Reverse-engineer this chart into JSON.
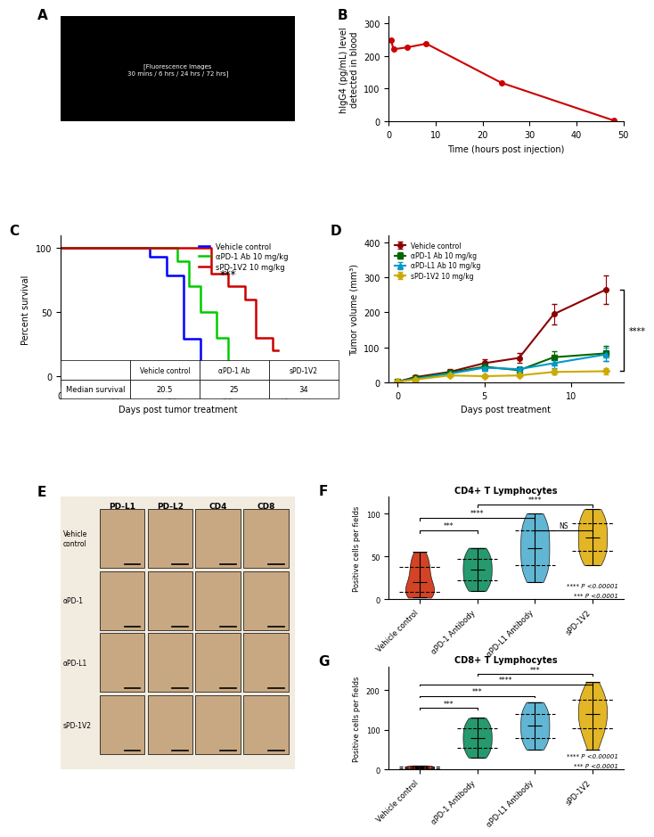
{
  "panel_B": {
    "x": [
      0.5,
      1,
      4,
      8,
      24,
      48
    ],
    "y": [
      247,
      220,
      226,
      237,
      118,
      3
    ],
    "color": "#CC0000",
    "xlabel": "Time (hours post injection)",
    "ylabel": "hIgG4 (pg/mL) level\ndetected in blood",
    "ylim": [
      0,
      320
    ],
    "yticks": [
      0,
      100,
      200,
      300
    ],
    "xlim": [
      0,
      50
    ],
    "xticks": [
      0,
      10,
      20,
      30,
      40,
      50
    ]
  },
  "panel_C": {
    "vehicle": {
      "times": [
        0,
        14,
        16,
        19,
        22,
        25,
        27,
        28
      ],
      "survival": [
        100,
        100,
        93,
        79,
        29,
        7,
        0,
        0
      ],
      "color": "#0000FF"
    },
    "apd1": {
      "times": [
        0,
        18,
        21,
        23,
        25,
        28,
        30,
        31
      ],
      "survival": [
        100,
        100,
        90,
        70,
        50,
        30,
        10,
        0
      ],
      "color": "#00CC00"
    },
    "spd1v2": {
      "times": [
        0,
        22,
        27,
        30,
        33,
        35,
        38,
        39
      ],
      "survival": [
        100,
        100,
        80,
        70,
        60,
        30,
        20,
        20
      ],
      "color": "#CC0000"
    },
    "xlabel": "Days post tumor treatment",
    "ylabel": "Percent survival",
    "xlim": [
      0,
      42
    ],
    "ylim": [
      -5,
      110
    ],
    "xticks": [
      0,
      10,
      20,
      30,
      40
    ],
    "yticks": [
      0,
      50,
      100
    ],
    "legend_labels": [
      "Vehicle control",
      "αPD-1 Ab 10 mg/kg",
      "sPD-1V2 10 mg/kg"
    ],
    "table": {
      "rows": [
        "Median survival"
      ],
      "cols": [
        "Vehicle control",
        "αPD-1 Ab",
        "sPD-1V2"
      ],
      "values": [
        [
          "20.5",
          "25",
          "34"
        ]
      ]
    },
    "stat_text": "***",
    "stat_x": 30,
    "stat_y": 80
  },
  "panel_D": {
    "days": [
      0,
      1,
      3,
      5,
      7,
      9,
      12
    ],
    "vehicle": {
      "mean": [
        2,
        15,
        30,
        55,
        70,
        195,
        265
      ],
      "err": [
        1,
        5,
        8,
        12,
        15,
        30,
        40
      ],
      "color": "#8B0000",
      "marker": "o"
    },
    "apd1": {
      "mean": [
        2,
        12,
        28,
        45,
        35,
        72,
        83
      ],
      "err": [
        1,
        4,
        7,
        10,
        8,
        18,
        22
      ],
      "color": "#006600",
      "marker": "s"
    },
    "apdl1": {
      "mean": [
        2,
        10,
        25,
        42,
        38,
        55,
        80
      ],
      "err": [
        1,
        3,
        6,
        8,
        8,
        15,
        20
      ],
      "color": "#0099CC",
      "marker": "^"
    },
    "spd1v2": {
      "mean": [
        2,
        8,
        20,
        18,
        20,
        30,
        32
      ],
      "err": [
        1,
        3,
        5,
        5,
        5,
        8,
        10
      ],
      "color": "#CCAA00",
      "marker": "D"
    },
    "xlabel": "Days post treatment",
    "ylabel": "Tumor volume (mm³)",
    "ylim": [
      0,
      420
    ],
    "yticks": [
      0,
      100,
      200,
      300,
      400
    ],
    "xlim": [
      -0.5,
      13
    ],
    "xticks": [
      0,
      5,
      10
    ],
    "legend_labels": [
      "Vehicle control",
      "αPD-1 Ab 10 mg/kg",
      "αPD-L1 Ab 10 mg/kg",
      "sPD-1V2 10 mg/kg"
    ],
    "stat_text": "****",
    "bracket_y_low": 32,
    "bracket_y_high": 265,
    "bracket_x": 12.8
  },
  "panel_F": {
    "title": "CD4+ T Lymphocytes",
    "ylabel": "Positive cells per fields",
    "ylim": [
      0,
      120
    ],
    "yticks": [
      0,
      50,
      100
    ],
    "groups": [
      "Vehicle control",
      "αPD-1 Antibody",
      "αPD-L1 Antibody",
      "sPD-1V2"
    ],
    "colors": [
      "#CC2200",
      "#008855",
      "#44AACC",
      "#DDAA00"
    ],
    "data": {
      "vehicle": [
        2,
        3,
        5,
        7,
        10,
        12,
        15,
        20,
        25,
        30,
        35,
        40,
        45,
        50,
        55
      ],
      "apd1": [
        10,
        15,
        20,
        25,
        30,
        35,
        40,
        45,
        50,
        55,
        60
      ],
      "apdl1": [
        20,
        25,
        30,
        35,
        40,
        45,
        50,
        55,
        60,
        65,
        70,
        75,
        80,
        85,
        90,
        95,
        100
      ],
      "spd1v2": [
        40,
        45,
        50,
        55,
        60,
        65,
        70,
        75,
        80,
        85,
        90,
        95,
        100,
        105
      ]
    },
    "stat_lines": [
      {
        "x1": 0,
        "x2": 1,
        "y": 80,
        "text": "***"
      },
      {
        "x1": 0,
        "x2": 2,
        "y": 95,
        "text": "****"
      },
      {
        "x1": 2,
        "x2": 3,
        "y": 80,
        "text": "NS"
      },
      {
        "x1": 1,
        "x2": 3,
        "y": 110,
        "text": "****"
      }
    ],
    "footnote": "**** P <0.00001\n*** P <0.0001"
  },
  "panel_G": {
    "title": "CD8+ T Lymphocytes",
    "ylabel": "Positive cells per fields",
    "ylim": [
      0,
      260
    ],
    "yticks": [
      0,
      100,
      200
    ],
    "groups": [
      "Vehicle control",
      "αPD-1 Antibody",
      "αPD-L1 Antibody",
      "sPD-1V2"
    ],
    "colors": [
      "#CC2200",
      "#008855",
      "#44AACC",
      "#DDAA00"
    ],
    "data": {
      "vehicle": [
        1,
        2,
        3,
        4,
        5,
        6,
        7,
        8,
        9,
        10
      ],
      "apd1": [
        30,
        40,
        50,
        60,
        70,
        80,
        90,
        100,
        110,
        120,
        130
      ],
      "apdl1": [
        50,
        60,
        70,
        80,
        90,
        100,
        110,
        120,
        130,
        140,
        150,
        160,
        170
      ],
      "spd1v2": [
        50,
        70,
        90,
        100,
        110,
        120,
        130,
        140,
        150,
        160,
        170,
        180,
        190,
        200,
        220
      ]
    },
    "stat_lines": [
      {
        "x1": 0,
        "x2": 1,
        "y": 155,
        "text": "***"
      },
      {
        "x1": 0,
        "x2": 2,
        "y": 185,
        "text": "***"
      },
      {
        "x1": 0,
        "x2": 3,
        "y": 215,
        "text": "****"
      },
      {
        "x1": 1,
        "x2": 3,
        "y": 240,
        "text": "***"
      }
    ],
    "footnote": "**** P <0.00001\n*** P <0.0001"
  },
  "panel_E": {
    "col_labels": [
      "PD-L1",
      "PD-L2",
      "CD4",
      "CD8"
    ],
    "row_labels": [
      "Vehicle\ncontrol",
      "αPD-1",
      "αPD-L1",
      "sPD-1V2"
    ]
  }
}
